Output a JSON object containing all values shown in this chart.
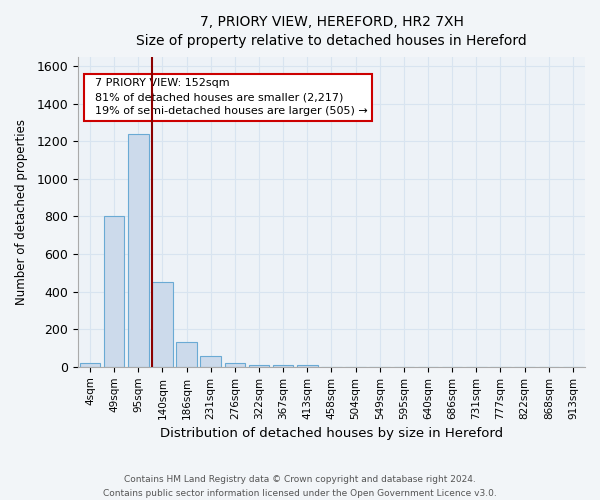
{
  "title": "7, PRIORY VIEW, HEREFORD, HR2 7XH",
  "subtitle": "Size of property relative to detached houses in Hereford",
  "xlabel": "Distribution of detached houses by size in Hereford",
  "ylabel": "Number of detached properties",
  "footer_line1": "Contains HM Land Registry data © Crown copyright and database right 2024.",
  "footer_line2": "Contains public sector information licensed under the Open Government Licence v3.0.",
  "bar_labels": [
    "4sqm",
    "49sqm",
    "95sqm",
    "140sqm",
    "186sqm",
    "231sqm",
    "276sqm",
    "322sqm",
    "367sqm",
    "413sqm",
    "458sqm",
    "504sqm",
    "549sqm",
    "595sqm",
    "640sqm",
    "686sqm",
    "731sqm",
    "777sqm",
    "822sqm",
    "868sqm",
    "913sqm"
  ],
  "bar_values": [
    20,
    800,
    1240,
    450,
    130,
    55,
    20,
    12,
    10,
    10,
    0,
    0,
    0,
    0,
    0,
    0,
    0,
    0,
    0,
    0,
    0
  ],
  "bar_color": "#ccdaeb",
  "bar_edge_color": "#6aaad4",
  "ylim": [
    0,
    1650
  ],
  "yticks": [
    0,
    200,
    400,
    600,
    800,
    1000,
    1200,
    1400,
    1600
  ],
  "vline_x": 2.55,
  "vline_color": "#8b0000",
  "annotation_text": "  7 PRIORY VIEW: 152sqm\n  81% of detached houses are smaller (2,217)\n  19% of semi-detached houses are larger (505) →",
  "annotation_box_color": "#ffffff",
  "annotation_box_edge": "#cc0000",
  "background_color": "#f2f5f8",
  "plot_background": "#edf2f7",
  "grid_color": "#d8e4f0"
}
